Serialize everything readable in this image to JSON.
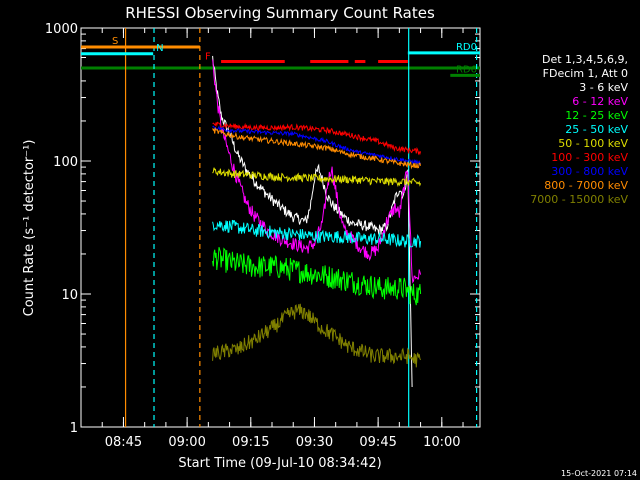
{
  "chart_data": {
    "type": "line",
    "title": "RHESSI Observing Summary Count Rates",
    "xlabel": "Start Time (09-Jul-10 08:34:42)",
    "ylabel": "Count Rate (s⁻¹ detector⁻¹)",
    "yscale": "log",
    "ylim": [
      1,
      1000
    ],
    "xlim_minutes": [
      0,
      94
    ],
    "x_ticks": [
      {
        "label": "08:45",
        "t": 10
      },
      {
        "label": "09:00",
        "t": 25
      },
      {
        "label": "09:15",
        "t": 40
      },
      {
        "label": "09:30",
        "t": 55
      },
      {
        "label": "09:45",
        "t": 70
      },
      {
        "label": "10:00",
        "t": 85
      }
    ],
    "y_ticks": [
      {
        "label": "1",
        "v": 1
      },
      {
        "label": "10",
        "v": 10
      },
      {
        "label": "100",
        "v": 100
      },
      {
        "label": "1000",
        "v": 1000
      }
    ],
    "legend_header": [
      "Det 1,3,4,5,6,9,",
      "FDecim 1, Att 0"
    ],
    "legend_position": "right",
    "series": [
      {
        "name": "3 - 6 keV",
        "color": "#ffffff",
        "t": [
          31,
          32,
          33,
          35,
          37,
          39,
          41,
          44,
          47,
          50,
          53,
          54,
          55,
          56,
          57,
          58,
          59,
          60,
          62,
          64,
          66,
          68,
          70,
          72,
          74,
          75,
          76,
          77,
          78
        ],
        "v": [
          600,
          340,
          220,
          160,
          110,
          85,
          70,
          55,
          45,
          38,
          35,
          45,
          75,
          88,
          70,
          55,
          48,
          44,
          38,
          34,
          33,
          32,
          30,
          32,
          52,
          62,
          55,
          85,
          2
        ]
      },
      {
        "name": "6 - 12 keV",
        "color": "#ff00ff",
        "t": [
          31,
          32,
          33,
          35,
          37,
          39,
          41,
          44,
          47,
          50,
          53,
          55,
          57,
          58,
          59,
          60,
          61,
          62,
          64,
          66,
          68,
          70,
          72,
          74,
          75,
          76,
          77,
          78,
          80
        ],
        "v": [
          560,
          300,
          180,
          110,
          70,
          48,
          38,
          30,
          26,
          24,
          22,
          24,
          35,
          65,
          90,
          60,
          40,
          30,
          26,
          22,
          20,
          22,
          35,
          45,
          40,
          60,
          90,
          13,
          14
        ]
      },
      {
        "name": "12 - 25 keV",
        "color": "#00ff00",
        "t": [
          31,
          36,
          41,
          46,
          51,
          56,
          61,
          66,
          71,
          76,
          78,
          80
        ],
        "v": [
          19,
          17,
          16,
          16,
          15,
          14,
          13,
          12,
          11,
          11,
          10,
          10
        ]
      },
      {
        "name": "25 - 50 keV",
        "color": "#00ffff",
        "t": [
          31,
          36,
          41,
          46,
          51,
          56,
          61,
          66,
          71,
          76,
          78,
          80
        ],
        "v": [
          34,
          32,
          30,
          29,
          28,
          27,
          27,
          26,
          26,
          25,
          25,
          25
        ]
      },
      {
        "name": "50 - 100 keV",
        "color": "#dddd00",
        "t": [
          31,
          36,
          41,
          46,
          51,
          56,
          61,
          66,
          71,
          76,
          78,
          80
        ],
        "v": [
          84,
          80,
          78,
          76,
          75,
          74,
          73,
          72,
          70,
          70,
          69,
          68
        ]
      },
      {
        "name": "100 - 300 keV",
        "color": "#ff0000",
        "t": [
          31,
          34,
          38,
          42,
          46,
          50,
          54,
          58,
          62,
          66,
          70,
          74,
          78,
          80
        ],
        "v": [
          190,
          185,
          180,
          178,
          178,
          180,
          175,
          170,
          160,
          150,
          140,
          125,
          120,
          118
        ]
      },
      {
        "name": "300 - 800 keV",
        "color": "#0000ff",
        "t": [
          31,
          34,
          38,
          42,
          46,
          50,
          54,
          58,
          62,
          66,
          70,
          74,
          78,
          80
        ],
        "v": [
          180,
          172,
          168,
          165,
          162,
          160,
          150,
          140,
          125,
          115,
          110,
          104,
          99,
          97
        ]
      },
      {
        "name": "800 - 7000 keV",
        "color": "#ff8c00",
        "t": [
          31,
          34,
          38,
          42,
          46,
          50,
          54,
          58,
          62,
          66,
          70,
          74,
          78,
          80
        ],
        "v": [
          170,
          160,
          150,
          145,
          140,
          135,
          130,
          125,
          115,
          108,
          103,
          97,
          93,
          92
        ]
      },
      {
        "name": "7000 - 15000 keV",
        "color": "#808000",
        "t": [
          31,
          33,
          35,
          37,
          39,
          41,
          43,
          45,
          47,
          49,
          51,
          53,
          55,
          57,
          59,
          61,
          63,
          65,
          67,
          69,
          71,
          73,
          75,
          77,
          79,
          80
        ],
        "v": [
          3.6,
          3.6,
          3.8,
          3.8,
          4.2,
          4.5,
          5,
          5.5,
          6.2,
          7,
          7.5,
          7.2,
          6.2,
          5.5,
          5,
          4.5,
          4,
          3.8,
          3.6,
          3.4,
          3.4,
          3.4,
          3.4,
          3.4,
          3.2,
          3.2
        ]
      }
    ],
    "flags": [
      {
        "label": "S",
        "color": "#ff8c00",
        "t_start": 0,
        "t_end": 28,
        "level": 720
      },
      {
        "label": "N",
        "color": "#00ffff",
        "t_start": 0,
        "t_end": 17,
        "level": 640
      },
      {
        "label": "RD0",
        "color": "#00ffff",
        "t_start": 77,
        "t_end": 94,
        "level": 650
      },
      {
        "label": "RD6",
        "color": "#007f00",
        "t_start": 87,
        "t_end": 94,
        "level": 440
      }
    ],
    "flare_flag": {
      "label": "F",
      "color": "#ff0000",
      "level": 560,
      "segments": [
        [
          33,
          48
        ],
        [
          54,
          63
        ],
        [
          64.5,
          67
        ],
        [
          70,
          77
        ]
      ]
    },
    "green_line": {
      "color": "#007f00",
      "level": 500
    },
    "vertical_markers": [
      {
        "t": 10.5,
        "color": "#ff8c00",
        "style": "solid"
      },
      {
        "t": 17.2,
        "color": "#00ffff",
        "style": "dashed"
      },
      {
        "t": 28,
        "color": "#ff8c00",
        "style": "dashed"
      },
      {
        "t": 77.2,
        "color": "#00ffff",
        "style": "solid"
      },
      {
        "t": 93.2,
        "color": "#00ffff",
        "style": "dashed"
      }
    ]
  },
  "footer_timestamp": "15-Oct-2021 07:14"
}
